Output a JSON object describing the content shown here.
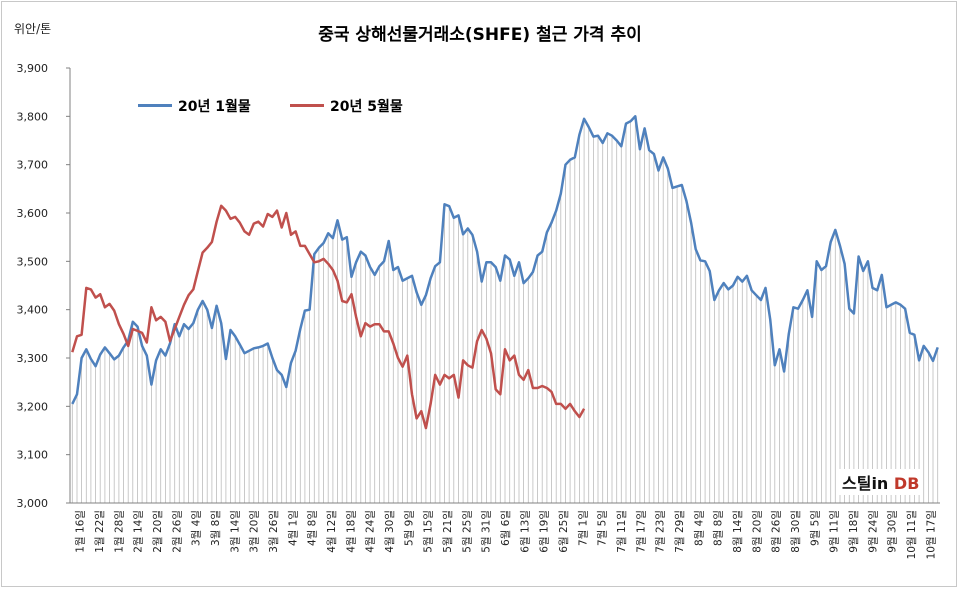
{
  "chart_data": {
    "type": "line",
    "title": "중국 상해선물거래소(SHFE) 철근 가격 추이",
    "unit_label": "위안/톤",
    "ylim": [
      3000,
      3900
    ],
    "yticks": [
      "3,000",
      "3,100",
      "3,200",
      "3,300",
      "3,400",
      "3,500",
      "3,600",
      "3,700",
      "3,800",
      "3,900"
    ],
    "x_labels": [
      "1월 16일",
      "1월 22일",
      "1월 28일",
      "2월 14일",
      "2월 20일",
      "2월 26일",
      "3월 4일",
      "3월 8일",
      "3월 14일",
      "3월 20일",
      "3월 26일",
      "4월 1일",
      "4월 8일",
      "4월 12일",
      "4월 18일",
      "4월 24일",
      "4월 30일",
      "5월 9일",
      "5월 15일",
      "5월 21일",
      "5월 25일",
      "5월 31일",
      "6월 6일",
      "6월 13일",
      "6월 19일",
      "6월 25일",
      "7월 1일",
      "7월 5일",
      "7월 11일",
      "7월 17일",
      "7월 23일",
      "7월 29일",
      "8월 4일",
      "8월 8일",
      "8월 14일",
      "8월 20일",
      "8월 26일",
      "8월 30일",
      "9월 5일",
      "9월 11일",
      "9월 18일",
      "9월 24일",
      "9월 30일",
      "10월 11일",
      "10월 17일"
    ],
    "grid": false,
    "legend_position": "top-left",
    "series": [
      {
        "name": "20년 1월물",
        "color": "#4f81bd",
        "values": [
          3205,
          3225,
          3300,
          3318,
          3298,
          3283,
          3307,
          3322,
          3310,
          3297,
          3305,
          3322,
          3336,
          3375,
          3365,
          3325,
          3305,
          3245,
          3295,
          3318,
          3305,
          3330,
          3370,
          3345,
          3370,
          3360,
          3372,
          3400,
          3418,
          3400,
          3362,
          3408,
          3372,
          3298,
          3358,
          3345,
          3328,
          3310,
          3315,
          3320,
          3322,
          3325,
          3330,
          3300,
          3275,
          3265,
          3240,
          3290,
          3315,
          3360,
          3398,
          3400,
          3515,
          3528,
          3538,
          3558,
          3548,
          3585,
          3545,
          3550,
          3468,
          3498,
          3520,
          3512,
          3488,
          3472,
          3490,
          3500,
          3542,
          3482,
          3488,
          3460,
          3465,
          3470,
          3436,
          3410,
          3430,
          3465,
          3490,
          3498,
          3618,
          3614,
          3590,
          3595,
          3556,
          3568,
          3555,
          3520,
          3458,
          3498,
          3498,
          3488,
          3460,
          3512,
          3504,
          3470,
          3498,
          3455,
          3465,
          3478,
          3512,
          3520,
          3560,
          3580,
          3605,
          3640,
          3700,
          3710,
          3715,
          3762,
          3795,
          3778,
          3758,
          3760,
          3745,
          3765,
          3760,
          3750,
          3738,
          3785,
          3790,
          3800,
          3732,
          3775,
          3730,
          3722,
          3688,
          3715,
          3692,
          3652,
          3655,
          3658,
          3625,
          3580,
          3525,
          3502,
          3500,
          3480,
          3420,
          3440,
          3455,
          3442,
          3450,
          3468,
          3458,
          3470,
          3440,
          3430,
          3420,
          3445,
          3380,
          3285,
          3318,
          3272,
          3350,
          3405,
          3402,
          3420,
          3440,
          3385,
          3500,
          3482,
          3490,
          3540,
          3565,
          3532,
          3495,
          3402,
          3392,
          3510,
          3480,
          3500,
          3445,
          3440,
          3472,
          3405,
          3410,
          3415,
          3410,
          3402,
          3352,
          3348,
          3295,
          3325,
          3312,
          3294,
          3322
        ]
      },
      {
        "name": "20년 5월물",
        "color": "#c0504d",
        "values": [
          3312,
          3345,
          3348,
          3445,
          3442,
          3425,
          3432,
          3405,
          3412,
          3398,
          3370,
          3350,
          3325,
          3360,
          3356,
          3352,
          3332,
          3405,
          3378,
          3385,
          3375,
          3335,
          3360,
          3385,
          3410,
          3430,
          3442,
          3480,
          3518,
          3528,
          3540,
          3582,
          3615,
          3605,
          3588,
          3592,
          3580,
          3562,
          3555,
          3578,
          3582,
          3572,
          3598,
          3592,
          3605,
          3570,
          3600,
          3555,
          3562,
          3532,
          3532,
          3515,
          3498,
          3500,
          3505,
          3495,
          3482,
          3460,
          3418,
          3415,
          3432,
          3385,
          3345,
          3372,
          3365,
          3370,
          3370,
          3355,
          3355,
          3330,
          3300,
          3282,
          3305,
          3225,
          3175,
          3190,
          3155,
          3205,
          3265,
          3245,
          3265,
          3258,
          3265,
          3218,
          3295,
          3285,
          3280,
          3335,
          3358,
          3340,
          3310,
          3235,
          3225,
          3318,
          3295,
          3305,
          3265,
          3255,
          3275,
          3238,
          3238,
          3242,
          3238,
          3230,
          3205,
          3205,
          3195,
          3205,
          3190,
          3178,
          3195
        ]
      }
    ]
  },
  "brand": {
    "part1": "스틸in",
    "part2": "DB"
  }
}
